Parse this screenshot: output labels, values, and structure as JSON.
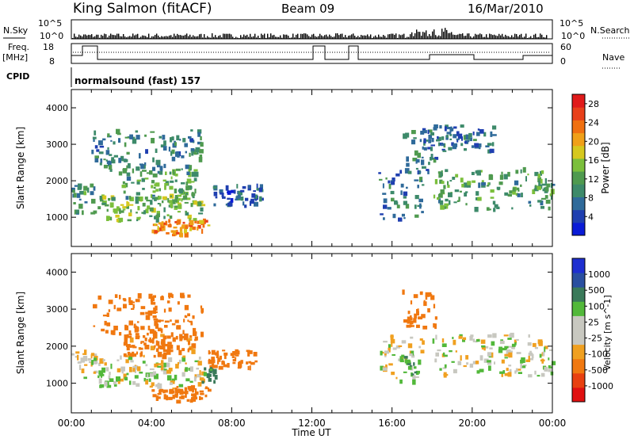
{
  "header": {
    "station": "King Salmon (fitACF)",
    "beam": "Beam 09",
    "date": "16/Mar/2010"
  },
  "small_panels": {
    "nsky_label": "N.Sky",
    "nsearch_label": "N.Search",
    "nsky_ticks": [
      "10^5",
      "10^0"
    ],
    "nsearch_ticks": [
      "10^5",
      "10^0"
    ],
    "freq_label_1": "Freq.",
    "freq_label_2": "[MHz]",
    "freq_ticks": [
      "18",
      "8"
    ],
    "nave_label": "Nave",
    "nave_ticks": [
      "60",
      "0"
    ],
    "cpid_label": "CPID",
    "cpid_value": "normalsound (fast) 157"
  },
  "colors": {
    "power": [
      "#0a1bd6",
      "#1f3fb0",
      "#2f6a9a",
      "#3d8a6a",
      "#4f9a4f",
      "#7bbf3c",
      "#d6c81e",
      "#f0a018",
      "#f07010",
      "#e8401a",
      "#e01a1a"
    ],
    "velocity": [
      "#1e2fd0",
      "#2a4fa0",
      "#3a7a5a",
      "#52b83a",
      "#c8c8c0",
      "#c8c8c0",
      "#f0a020",
      "#f07810",
      "#e84010",
      "#e01010"
    ]
  },
  "chart_data": [
    {
      "type": "heatmap",
      "title": "",
      "xlabel": "Time UT",
      "ylabel": "Slant Range [km]",
      "x_ticks": [
        "00:00",
        "04:00",
        "08:00",
        "12:00",
        "16:00",
        "20:00",
        "00:00"
      ],
      "x_range_hours": [
        0,
        24
      ],
      "y_ticks": [
        "1000",
        "2000",
        "3000",
        "4000"
      ],
      "ylim": [
        200,
        4500
      ],
      "colorbar_label": "Power [dB]",
      "colorbar_ticks": [
        "4",
        "8",
        "12",
        "16",
        "20",
        "24",
        "28"
      ],
      "colorbar_range": [
        0,
        30
      ],
      "regions": [
        {
          "t": [
            0.0,
            1.2
          ],
          "r": [
            1100,
            1900
          ],
          "v": 10
        },
        {
          "t": [
            1.3,
            6.5
          ],
          "r": [
            900,
            1600
          ],
          "v": 14
        },
        {
          "t": [
            2.5,
            6.2
          ],
          "r": [
            1500,
            2300
          ],
          "v": 12
        },
        {
          "t": [
            1.0,
            6.5
          ],
          "r": [
            2200,
            3400
          ],
          "v": 9
        },
        {
          "t": [
            4.0,
            6.8
          ],
          "r": [
            500,
            900
          ],
          "v": 22
        },
        {
          "t": [
            7.0,
            9.5
          ],
          "r": [
            1300,
            1900
          ],
          "v": 6
        },
        {
          "t": [
            15.3,
            17.5
          ],
          "r": [
            900,
            2300
          ],
          "v": 8
        },
        {
          "t": [
            16.5,
            18.2
          ],
          "r": [
            2200,
            3400
          ],
          "v": 9
        },
        {
          "t": [
            18.0,
            24.0
          ],
          "r": [
            1200,
            2300
          ],
          "v": 12
        },
        {
          "t": [
            17.5,
            21.0
          ],
          "r": [
            2800,
            3500
          ],
          "v": 7
        }
      ]
    },
    {
      "type": "heatmap",
      "title": "",
      "xlabel": "Time UT",
      "ylabel": "Slant Range [km]",
      "x_ticks": [
        "00:00",
        "04:00",
        "08:00",
        "12:00",
        "16:00",
        "20:00",
        "00:00"
      ],
      "x_range_hours": [
        0,
        24
      ],
      "y_ticks": [
        "1000",
        "2000",
        "3000",
        "4000"
      ],
      "ylim": [
        200,
        4500
      ],
      "colorbar_label": "Velocity [m s^-1]",
      "colorbar_ticks": [
        "1000",
        "500",
        "100",
        "25",
        "-25",
        "-100",
        "-500",
        "-1000"
      ],
      "colorbar_range": [
        -1000,
        1000
      ],
      "regions": [
        {
          "t": [
            0.0,
            1.2
          ],
          "r": [
            1100,
            1900
          ],
          "v": 0
        },
        {
          "t": [
            1.3,
            6.5
          ],
          "r": [
            900,
            1700
          ],
          "v": 0
        },
        {
          "t": [
            2.5,
            6.2
          ],
          "r": [
            1700,
            2300
          ],
          "v": -150
        },
        {
          "t": [
            1.0,
            6.5
          ],
          "r": [
            2200,
            3400
          ],
          "v": -200
        },
        {
          "t": [
            4.0,
            6.8
          ],
          "r": [
            500,
            900
          ],
          "v": -150
        },
        {
          "t": [
            6.8,
            9.2
          ],
          "r": [
            1400,
            1900
          ],
          "v": -400
        },
        {
          "t": [
            6.5,
            7.2
          ],
          "r": [
            1000,
            1400
          ],
          "v": 150
        },
        {
          "t": [
            15.3,
            17.5
          ],
          "r": [
            1000,
            2300
          ],
          "v": 0
        },
        {
          "t": [
            16.5,
            17.2
          ],
          "r": [
            1200,
            1700
          ],
          "v": 100
        },
        {
          "t": [
            16.5,
            18.2
          ],
          "r": [
            2500,
            3500
          ],
          "v": -300
        },
        {
          "t": [
            18.0,
            24.0
          ],
          "r": [
            1200,
            2300
          ],
          "v": 0
        }
      ]
    }
  ]
}
